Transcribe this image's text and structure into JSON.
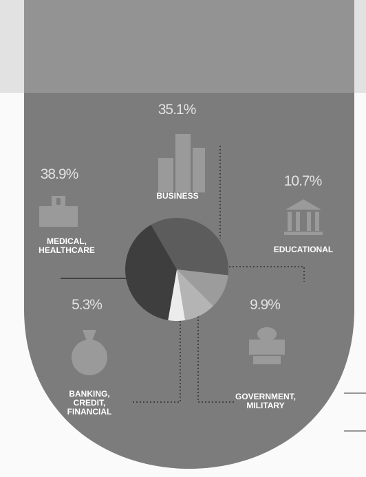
{
  "chart_data": {
    "type": "pie",
    "categories": [
      "MEDICAL, HEALTHCARE",
      "BUSINESS",
      "EDUCATIONAL",
      "GOVERNMENT, MILITARY",
      "BANKING, CREDIT, FINANCIAL"
    ],
    "values": [
      38.9,
      35.1,
      10.7,
      9.9,
      5.3
    ],
    "value_labels": [
      "38.9%",
      "35.1%",
      "10.7%",
      "9.9%",
      "5.3%"
    ],
    "colors": [
      "#3e3e3e",
      "#5c5c5c",
      "#9c9c9c",
      "#b4b4b4",
      "#ececec"
    ]
  }
}
